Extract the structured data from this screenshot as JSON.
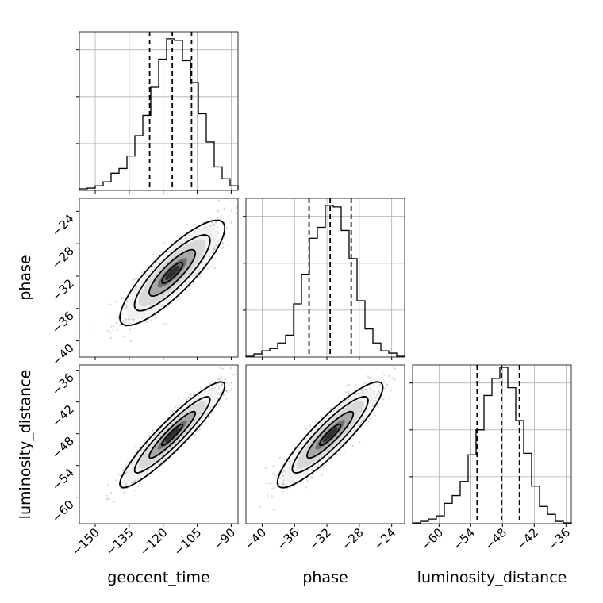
{
  "chart_data": {
    "type": "corner",
    "parameters": [
      {
        "name": "geocent_time",
        "xlabel": "geocent_time",
        "range": [
          -157,
          -87
        ],
        "ticks": [
          -150,
          -135,
          -120,
          -105,
          -90
        ],
        "tick_labels": [
          "−150",
          "−135",
          "−120",
          "−105",
          "−90"
        ],
        "quantiles": [
          -126,
          -116,
          -107.5
        ],
        "hist_bins": [
          -157,
          -153.5,
          -150,
          -146.5,
          -143,
          -139.5,
          -136,
          -132.5,
          -129,
          -125.5,
          -122,
          -118.5,
          -115,
          -111.5,
          -108,
          -104.5,
          -101,
          -97.5,
          -94,
          -90.5,
          -87
        ],
        "hist_counts": [
          0.01,
          0.015,
          0.03,
          0.055,
          0.11,
          0.14,
          0.22,
          0.35,
          0.48,
          0.66,
          0.84,
          0.97,
          0.96,
          0.83,
          0.69,
          0.49,
          0.31,
          0.15,
          0.075,
          0.03
        ]
      },
      {
        "name": "phase",
        "xlabel": "phase",
        "ylabel": "phase",
        "range": [
          -42,
          -22.4
        ],
        "ticks": [
          -40,
          -36,
          -32,
          -28,
          -24
        ],
        "tick_labels": [
          "−40",
          "−36",
          "−32",
          "−28",
          "−24"
        ],
        "quantiles": [
          -34.2,
          -31.6,
          -29.0
        ],
        "hist_bins": [
          -42,
          -41.02,
          -40.04,
          -39.06,
          -38.08,
          -37.1,
          -36.12,
          -35.14,
          -34.16,
          -33.18,
          -32.2,
          -31.22,
          -30.24,
          -29.26,
          -28.28,
          -27.3,
          -26.32,
          -25.34,
          -24.36,
          -23.38,
          -22.4
        ],
        "hist_counts": [
          0.005,
          0.02,
          0.04,
          0.055,
          0.09,
          0.14,
          0.34,
          0.53,
          0.76,
          0.83,
          0.97,
          0.96,
          0.81,
          0.63,
          0.36,
          0.18,
          0.09,
          0.04,
          0.025,
          0.005
        ]
      },
      {
        "name": "luminosity_distance",
        "xlabel": "luminosity_distance",
        "ylabel": "luminosity_distance",
        "range": [
          -65,
          -35
        ],
        "ticks": [
          -60,
          -54,
          -48,
          -42,
          -36
        ],
        "tick_labels": [
          "−60",
          "−54",
          "−48",
          "−42",
          "−36"
        ],
        "quantiles": [
          -52.8,
          -48.2,
          -44.8
        ],
        "hist_bins": [
          -65,
          -63.5,
          -62,
          -60.5,
          -59,
          -57.5,
          -56,
          -54.5,
          -53,
          -51.5,
          -50,
          -48.5,
          -47,
          -45.5,
          -44,
          -42.5,
          -41,
          -39.5,
          -38,
          -36.5,
          -35
        ],
        "hist_counts": [
          0.005,
          0.015,
          0.03,
          0.05,
          0.13,
          0.18,
          0.27,
          0.44,
          0.6,
          0.82,
          0.93,
          1.0,
          0.87,
          0.66,
          0.45,
          0.24,
          0.11,
          0.06,
          0.015,
          0.005
        ]
      }
    ],
    "pairs": [
      {
        "x": "geocent_time",
        "y": "phase",
        "correlation": 0.85,
        "peak": [
          -115.5,
          -30.5
        ]
      },
      {
        "x": "geocent_time",
        "y": "luminosity_distance",
        "correlation": 0.93,
        "peak": [
          -115.5,
          -48.0
        ]
      },
      {
        "x": "phase",
        "y": "luminosity_distance",
        "correlation": 0.9,
        "peak": [
          -31.0,
          -47.5
        ]
      }
    ],
    "grid": true,
    "legend": "none"
  }
}
